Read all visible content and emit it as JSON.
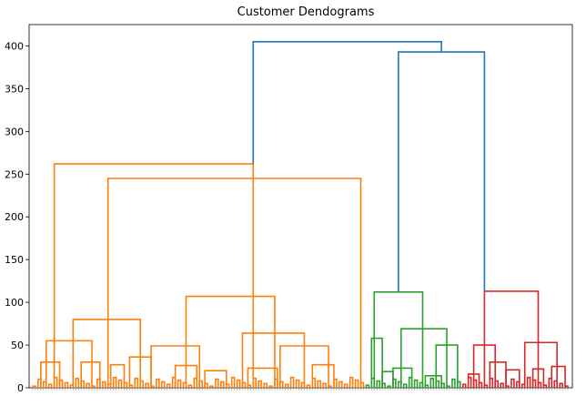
{
  "chart_data": {
    "type": "dendrogram",
    "title": "Customer Dendograms",
    "xlabel": "",
    "ylabel": "",
    "ylim": [
      0,
      425
    ],
    "yticks": [
      0,
      50,
      100,
      150,
      200,
      250,
      300,
      350,
      400
    ],
    "grid": false,
    "legend": "none",
    "leaf_count": 200,
    "colors": {
      "cluster_orange": "#ff7f0e",
      "cluster_green": "#2ca02c",
      "cluster_red": "#d62728",
      "top_links": "#1f77b4"
    },
    "top_links": [
      {
        "left_x": 82,
        "right_x": 152,
        "height": 405
      },
      {
        "left_x": 136,
        "right_x": 168,
        "height": 393
      },
      {
        "left_x": 82,
        "right_x": 122,
        "height": 262
      }
    ],
    "clusters": [
      {
        "color": "cluster_orange",
        "leaf_range": [
          0,
          124
        ],
        "links": [
          {
            "left_x": 8,
            "right_x": 82,
            "height": 262
          },
          {
            "left_x": 28,
            "right_x": 122,
            "height": 245
          },
          {
            "left_x": 5,
            "right_x": 22,
            "height": 55
          },
          {
            "left_x": 15,
            "right_x": 40,
            "height": 80
          },
          {
            "left_x": 57,
            "right_x": 90,
            "height": 107
          },
          {
            "left_x": 44,
            "right_x": 62,
            "height": 49
          },
          {
            "left_x": 78,
            "right_x": 101,
            "height": 64
          },
          {
            "left_x": 92,
            "right_x": 110,
            "height": 49
          },
          {
            "left_x": 3,
            "right_x": 10,
            "height": 30
          },
          {
            "left_x": 18,
            "right_x": 25,
            "height": 30
          },
          {
            "left_x": 36,
            "right_x": 44,
            "height": 36
          },
          {
            "left_x": 29,
            "right_x": 34,
            "height": 27
          },
          {
            "left_x": 53,
            "right_x": 61,
            "height": 26
          },
          {
            "left_x": 80,
            "right_x": 91,
            "height": 23
          },
          {
            "left_x": 104,
            "right_x": 112,
            "height": 27
          },
          {
            "left_x": 64,
            "right_x": 72,
            "height": 20
          }
        ]
      },
      {
        "color": "cluster_green",
        "leaf_range": [
          124,
          160
        ],
        "links": [
          {
            "left_x": 127,
            "right_x": 145,
            "height": 112
          },
          {
            "left_x": 137,
            "right_x": 154,
            "height": 69
          },
          {
            "left_x": 126,
            "right_x": 130,
            "height": 58
          },
          {
            "left_x": 150,
            "right_x": 158,
            "height": 50
          },
          {
            "left_x": 134,
            "right_x": 141,
            "height": 23
          },
          {
            "left_x": 146,
            "right_x": 152,
            "height": 14
          },
          {
            "left_x": 130,
            "right_x": 134,
            "height": 19
          }
        ]
      },
      {
        "color": "cluster_red",
        "leaf_range": [
          160,
          200
        ],
        "links": [
          {
            "left_x": 168,
            "right_x": 188,
            "height": 113
          },
          {
            "left_x": 164,
            "right_x": 172,
            "height": 50
          },
          {
            "left_x": 183,
            "right_x": 195,
            "height": 53
          },
          {
            "left_x": 170,
            "right_x": 176,
            "height": 30
          },
          {
            "left_x": 162,
            "right_x": 166,
            "height": 16
          },
          {
            "left_x": 176,
            "right_x": 181,
            "height": 21
          },
          {
            "left_x": 193,
            "right_x": 198,
            "height": 25
          },
          {
            "left_x": 186,
            "right_x": 190,
            "height": 22
          }
        ]
      }
    ]
  }
}
